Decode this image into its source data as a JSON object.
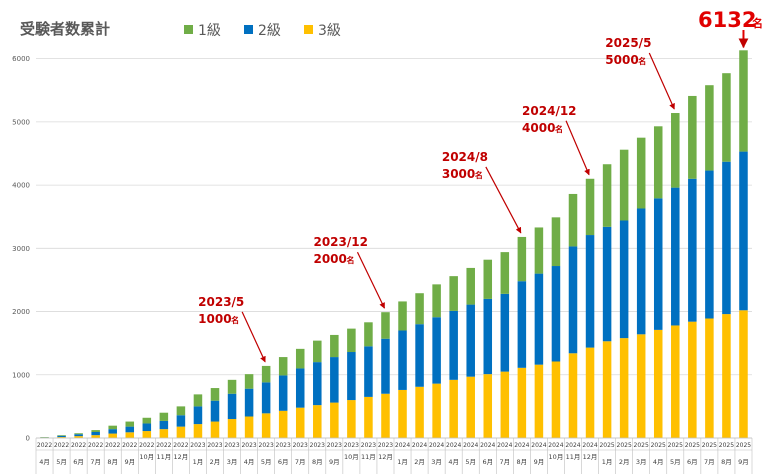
{
  "chart_data": {
    "type": "bar",
    "stacked": true,
    "title": "受験者数累計",
    "colors": {
      "1級": "#70ad47",
      "2級": "#0070c0",
      "3級": "#ffc000"
    },
    "legend": {
      "position": "top",
      "entries": [
        "1級",
        "2級",
        "3級"
      ]
    },
    "ylim": [
      0,
      6200
    ],
    "yticks": [
      "0",
      "1000",
      "2000",
      "3000",
      "4000",
      "5000",
      "6000"
    ],
    "grid": true,
    "categories": [
      {
        "year": "2022",
        "month": "4月"
      },
      {
        "year": "2022",
        "month": "5月"
      },
      {
        "year": "2022",
        "month": "6月"
      },
      {
        "year": "2022",
        "month": "7月"
      },
      {
        "year": "2022",
        "month": "8月"
      },
      {
        "year": "2022",
        "month": "9月"
      },
      {
        "year": "2022",
        "month": "10月"
      },
      {
        "year": "2022",
        "month": "11月"
      },
      {
        "year": "2022",
        "month": "12月"
      },
      {
        "year": "2023",
        "month": "1月"
      },
      {
        "year": "2023",
        "month": "2月"
      },
      {
        "year": "2023",
        "month": "3月"
      },
      {
        "year": "2023",
        "month": "4月"
      },
      {
        "year": "2023",
        "month": "5月"
      },
      {
        "year": "2023",
        "month": "6月"
      },
      {
        "year": "2023",
        "month": "7月"
      },
      {
        "year": "2023",
        "month": "8月"
      },
      {
        "year": "2023",
        "month": "9月"
      },
      {
        "year": "2023",
        "month": "10月"
      },
      {
        "year": "2023",
        "month": "11月"
      },
      {
        "year": "2023",
        "month": "12月"
      },
      {
        "year": "2024",
        "month": "1月"
      },
      {
        "year": "2024",
        "month": "2月"
      },
      {
        "year": "2024",
        "month": "3月"
      },
      {
        "year": "2024",
        "month": "4月"
      },
      {
        "year": "2024",
        "month": "5月"
      },
      {
        "year": "2024",
        "month": "6月"
      },
      {
        "year": "2024",
        "month": "7月"
      },
      {
        "year": "2024",
        "month": "8月"
      },
      {
        "year": "2024",
        "month": "9月"
      },
      {
        "year": "2024",
        "month": "10月"
      },
      {
        "year": "2024",
        "month": "11月"
      },
      {
        "year": "2024",
        "month": "12月"
      },
      {
        "year": "2025",
        "month": "1月"
      },
      {
        "year": "2025",
        "month": "2月"
      },
      {
        "year": "2025",
        "month": "3月"
      },
      {
        "year": "2025",
        "month": "4月"
      },
      {
        "year": "2025",
        "month": "5月"
      },
      {
        "year": "2025",
        "month": "6月"
      },
      {
        "year": "2025",
        "month": "7月"
      },
      {
        "year": "2025",
        "month": "8月"
      },
      {
        "year": "2025",
        "month": "9月"
      }
    ],
    "series": [
      {
        "name": "3級",
        "values": [
          5,
          15,
          30,
          45,
          70,
          90,
          110,
          140,
          180,
          220,
          260,
          300,
          340,
          390,
          430,
          480,
          520,
          560,
          600,
          650,
          700,
          760,
          810,
          860,
          920,
          970,
          1010,
          1050,
          1110,
          1160,
          1210,
          1340,
          1430,
          1530,
          1580,
          1640,
          1710,
          1780,
          1840,
          1890,
          1960,
          2020
        ]
      },
      {
        "name": "2級",
        "values": [
          5,
          20,
          30,
          50,
          70,
          90,
          120,
          130,
          180,
          280,
          330,
          400,
          440,
          490,
          560,
          620,
          680,
          720,
          760,
          800,
          870,
          940,
          990,
          1050,
          1090,
          1140,
          1190,
          1230,
          1370,
          1440,
          1510,
          1690,
          1780,
          1810,
          1860,
          1990,
          2080,
          2180,
          2260,
          2340,
          2410,
          2510
        ]
      },
      {
        "name": "1級",
        "values": [
          5,
          10,
          15,
          30,
          55,
          80,
          90,
          130,
          140,
          190,
          200,
          220,
          230,
          260,
          290,
          310,
          340,
          350,
          370,
          380,
          420,
          460,
          490,
          520,
          550,
          580,
          620,
          660,
          700,
          730,
          770,
          830,
          890,
          990,
          1120,
          1120,
          1140,
          1180,
          1310,
          1350,
          1400,
          1602
        ]
      }
    ],
    "annotations": [
      {
        "date": "2023/5",
        "count": "1000",
        "unit": "名"
      },
      {
        "date": "2023/12",
        "count": "2000",
        "unit": "名"
      },
      {
        "date": "2024/8",
        "count": "3000",
        "unit": "名"
      },
      {
        "date": "2024/12",
        "count": "4000",
        "unit": "名"
      },
      {
        "date": "2025/5",
        "count": "5000",
        "unit": "名"
      }
    ],
    "total": {
      "value": "6132",
      "unit": "名"
    }
  }
}
